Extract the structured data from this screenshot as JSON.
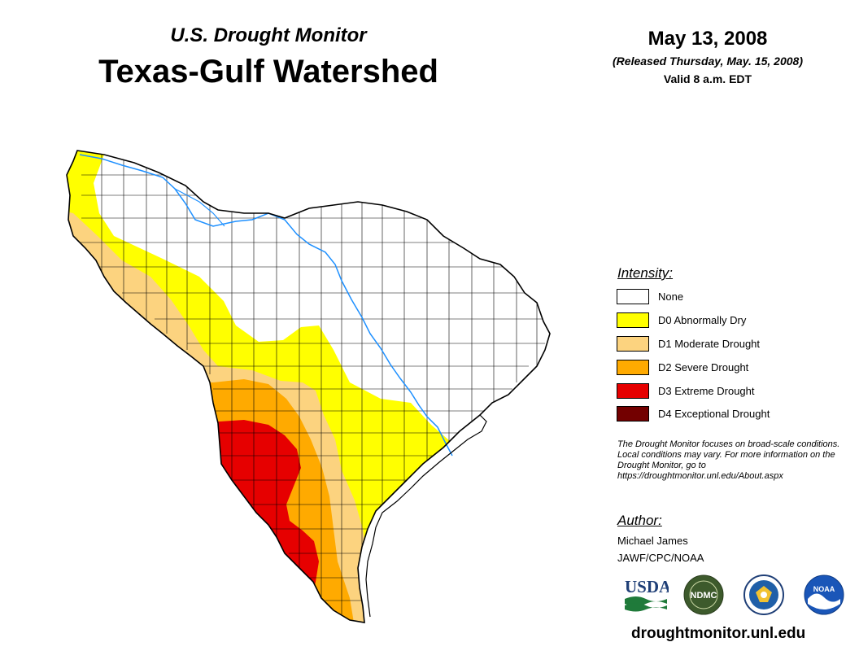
{
  "header": {
    "subtitle": "U.S. Drought Monitor",
    "title": "Texas-Gulf Watershed",
    "date": "May 13, 2008",
    "released": "(Released Thursday, May. 15, 2008)",
    "valid": "Valid 8 a.m. EDT"
  },
  "legend": {
    "heading": "Intensity:",
    "items": [
      {
        "label": "None",
        "color": "#ffffff"
      },
      {
        "label": "D0 Abnormally Dry",
        "color": "#ffff00"
      },
      {
        "label": "D1 Moderate Drought",
        "color": "#fcd37f"
      },
      {
        "label": "D2 Severe Drought",
        "color": "#ffaa00"
      },
      {
        "label": "D3 Extreme Drought",
        "color": "#e60000"
      },
      {
        "label": "D4 Exceptional Drought",
        "color": "#730000"
      }
    ]
  },
  "disclaimer": "The Drought Monitor focuses on broad-scale conditions. Local conditions may vary. For more information on the Drought Monitor, go to https://droughtmonitor.unl.edu/About.aspx",
  "author": {
    "heading": "Author:",
    "name": "Michael James",
    "org": "JAWF/CPC/NOAA"
  },
  "logos": {
    "usda": "USDA",
    "ndmc": "NDMC",
    "noaa": "NOAA"
  },
  "site_url": "droughtmonitor.unl.edu",
  "map_colors": {
    "none": "#ffffff",
    "d0": "#ffff00",
    "d1": "#fcd37f",
    "d2": "#ffaa00",
    "d3": "#e60000",
    "river": "#1e90ff",
    "border": "#000000"
  }
}
